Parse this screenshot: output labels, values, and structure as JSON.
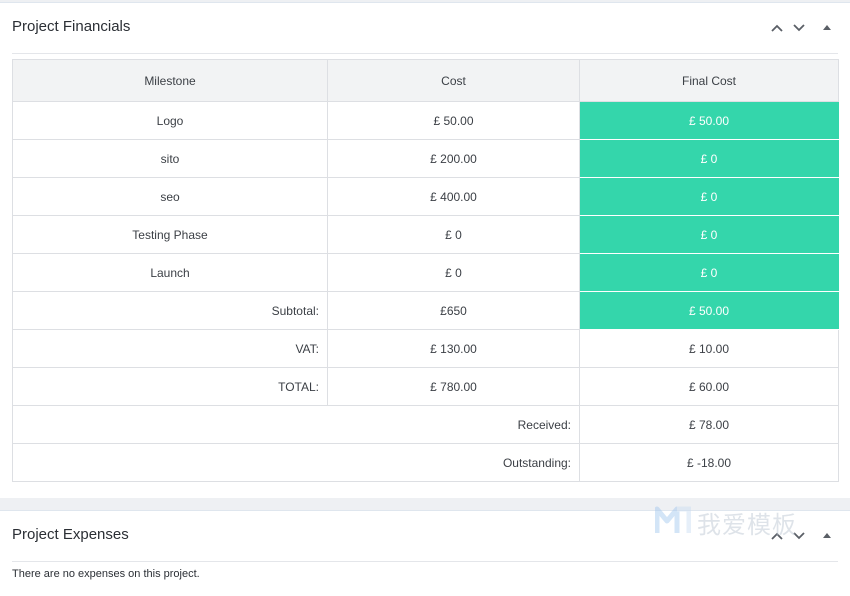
{
  "financials": {
    "title": "Project Financials",
    "columns": [
      "Milestone",
      "Cost",
      "Final Cost"
    ],
    "rows": [
      {
        "milestone": "Logo",
        "cost": "£ 50.00",
        "final": "£ 50.00"
      },
      {
        "milestone": "sito",
        "cost": "£ 200.00",
        "final": "£ 0"
      },
      {
        "milestone": "seo",
        "cost": "£ 400.00",
        "final": "£ 0"
      },
      {
        "milestone": "Testing Phase",
        "cost": "£ 0",
        "final": "£ 0"
      },
      {
        "milestone": "Launch",
        "cost": "£ 0",
        "final": "£ 0"
      }
    ],
    "subtotal": {
      "label": "Subtotal:",
      "cost": "£650",
      "final": "£ 50.00"
    },
    "vat": {
      "label": "VAT:",
      "cost": "£ 130.00",
      "final": "£ 10.00"
    },
    "total": {
      "label": "TOTAL:",
      "cost": "£ 780.00",
      "final": "£ 60.00"
    },
    "received": {
      "label": "Received:",
      "value": "£ 78.00"
    },
    "outstanding": {
      "label": "Outstanding:",
      "value": "£ -18.00"
    }
  },
  "expenses": {
    "title": "Project Expenses",
    "empty_message": "There are no expenses on this project."
  },
  "watermark": {
    "text": "我爱模板"
  },
  "colors": {
    "accent": "#34d6ab",
    "header_bg": "#f2f3f4",
    "border": "#dddfe3"
  },
  "icons": [
    "chevron-up-icon",
    "chevron-down-icon",
    "caret-up-icon"
  ]
}
